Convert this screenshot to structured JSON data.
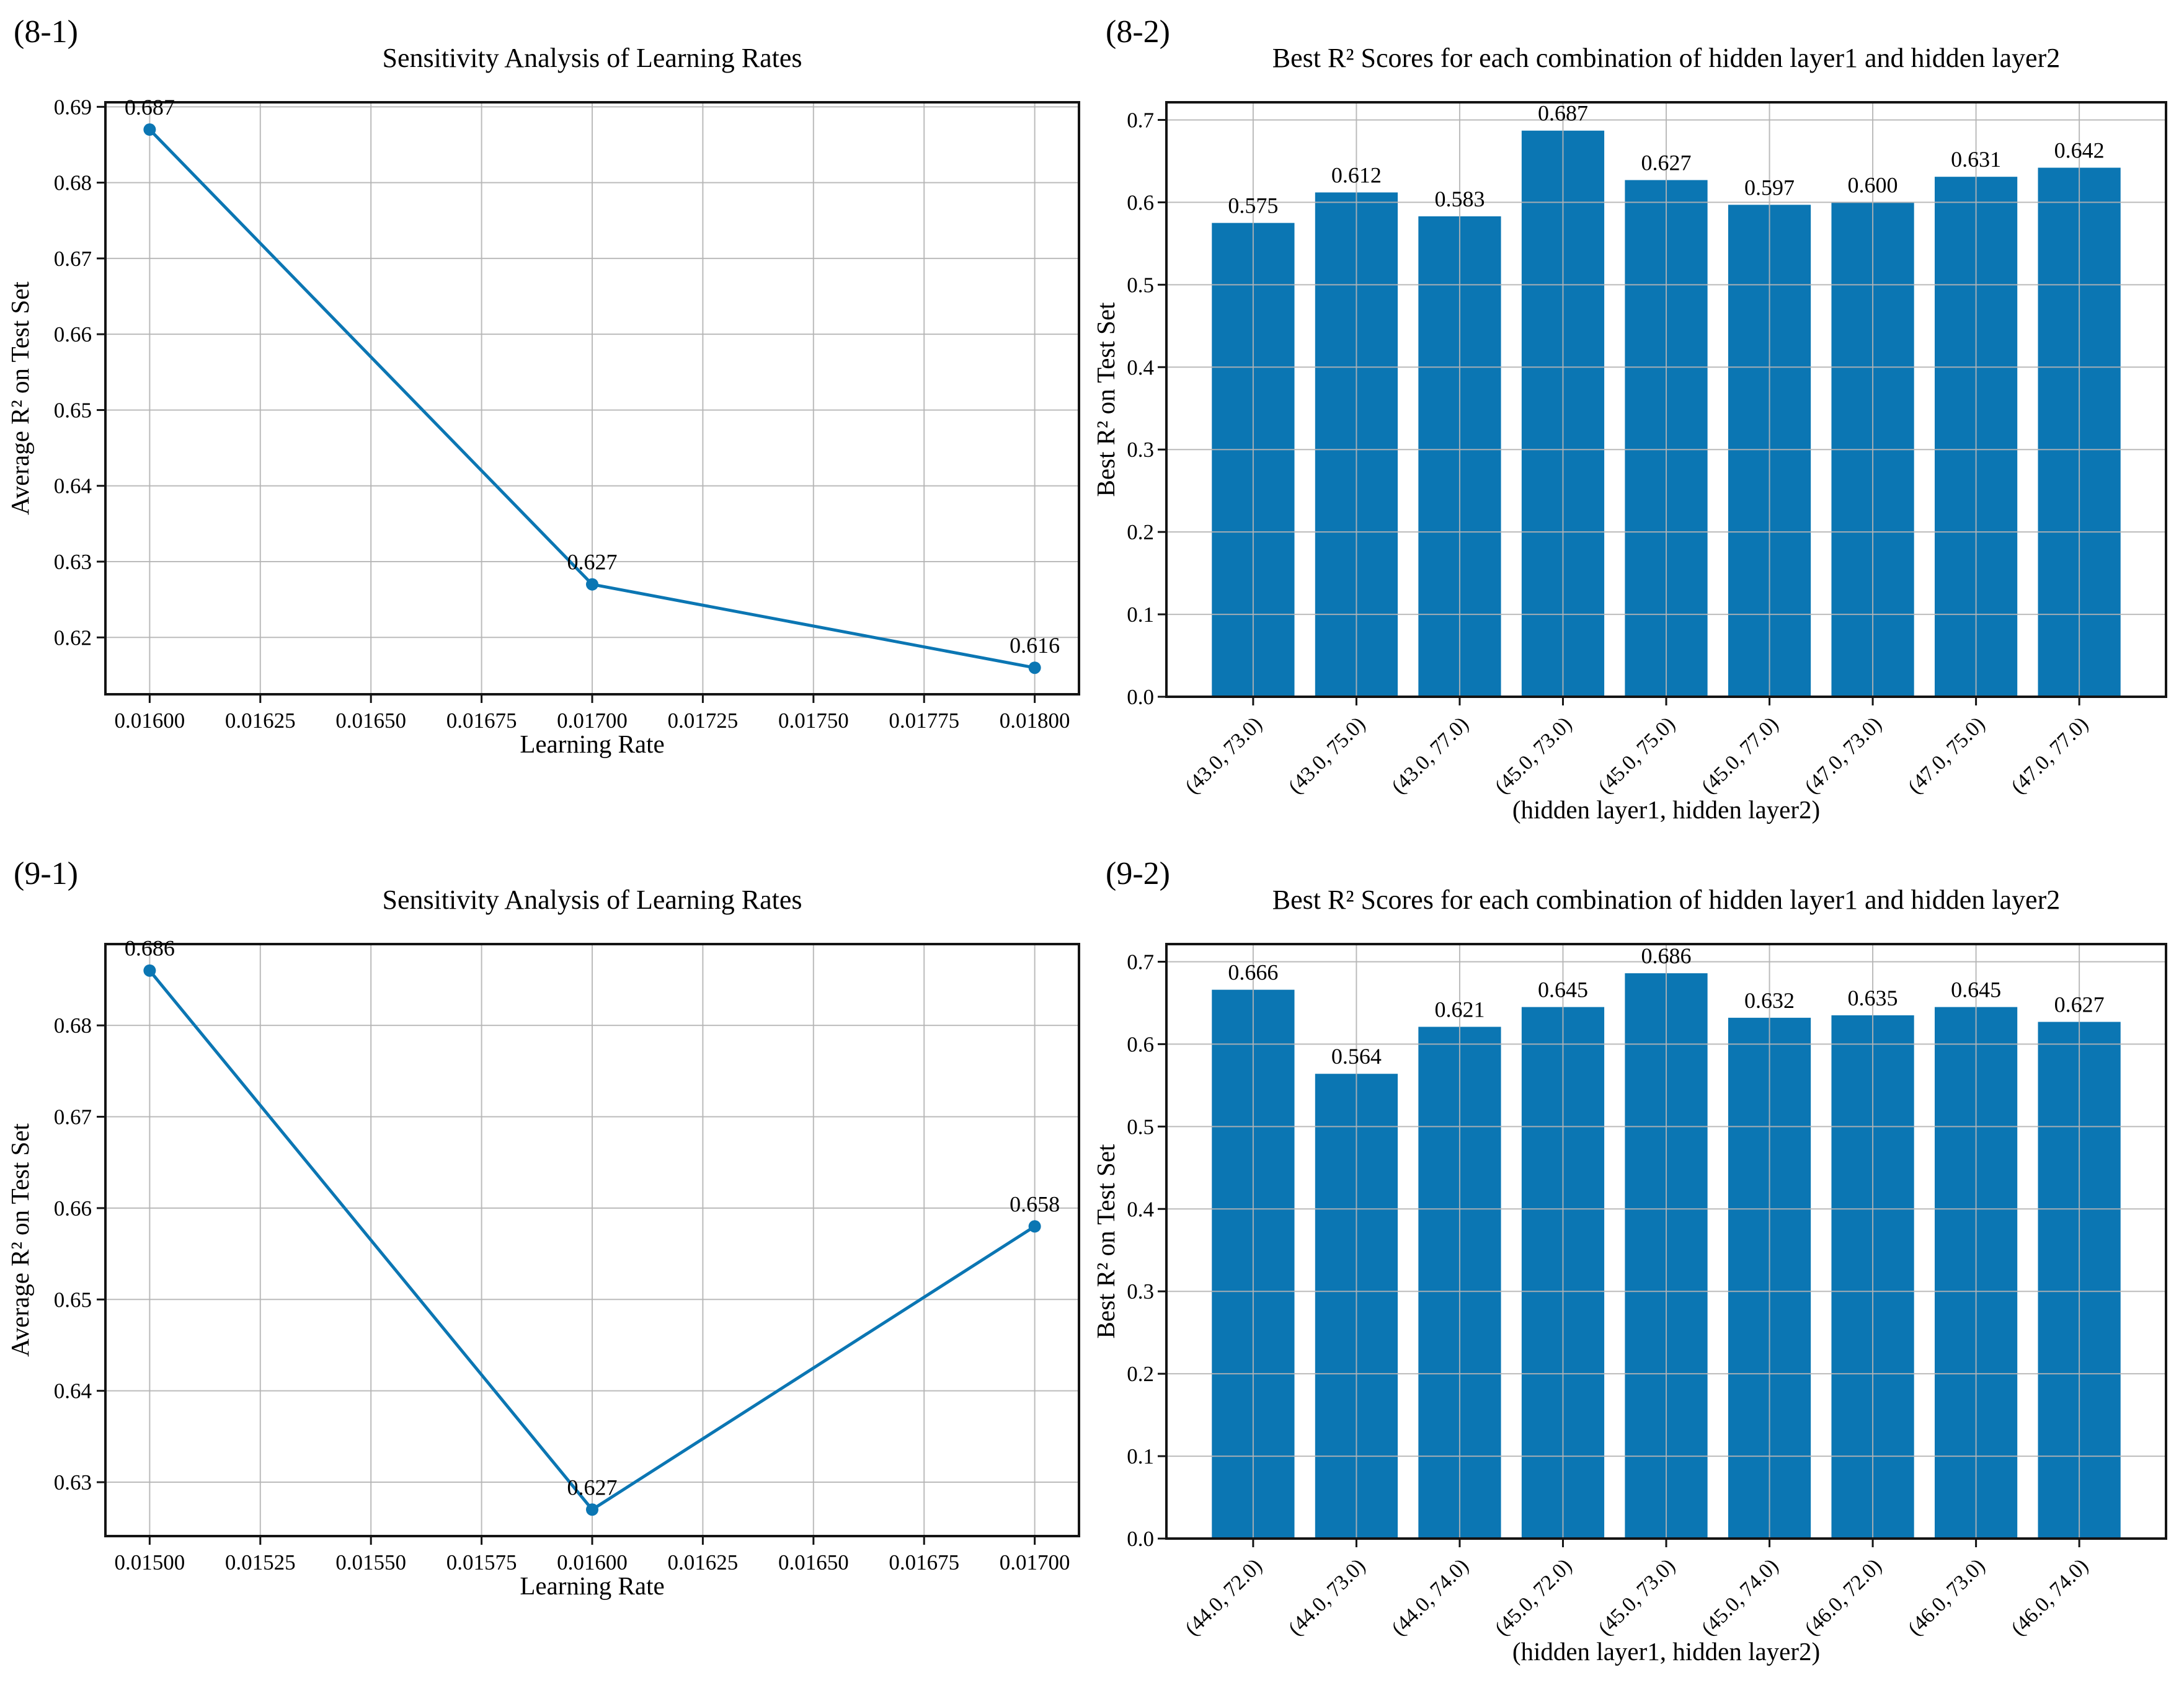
{
  "colors": {
    "series": "#0b76b3",
    "grid": "#b4b4b4",
    "spine": "#141414",
    "text": "#000000",
    "background": "#ffffff"
  },
  "chart_data": [
    {
      "id": "8-1",
      "panel_label": "(8-1)",
      "type": "line",
      "title": "Sensitivity Analysis of Learning Rates",
      "xlabel": "Learning Rate",
      "ylabel": "Average R² on Test Set",
      "x": [
        0.016,
        0.017,
        0.018
      ],
      "y": [
        0.687,
        0.627,
        0.616
      ],
      "point_labels": [
        "0.687",
        "0.627",
        "0.616"
      ],
      "xticks": [
        0.016,
        0.01625,
        0.0165,
        0.01675,
        0.017,
        0.01725,
        0.0175,
        0.01775,
        0.018
      ],
      "xtick_labels": [
        "0.01600",
        "0.01625",
        "0.01650",
        "0.01675",
        "0.01700",
        "0.01725",
        "0.01750",
        "0.01775",
        "0.01800"
      ],
      "yticks": [
        0.62,
        0.63,
        0.64,
        0.65,
        0.66,
        0.67,
        0.68,
        0.69
      ],
      "ytick_labels": [
        "0.62",
        "0.63",
        "0.64",
        "0.65",
        "0.66",
        "0.67",
        "0.68",
        "0.69"
      ],
      "xlim": [
        0.0159,
        0.0181
      ],
      "ylim": [
        0.6125,
        0.6906
      ],
      "grid": true
    },
    {
      "id": "8-2",
      "panel_label": "(8-2)",
      "type": "bar",
      "title": "Best R² Scores for each combination of hidden layer1 and hidden layer2",
      "xlabel": "(hidden layer1, hidden layer2)",
      "ylabel": "Best R² on Test Set",
      "categories": [
        "(43.0, 73.0)",
        "(43.0, 75.0)",
        "(43.0, 77.0)",
        "(45.0, 73.0)",
        "(45.0, 75.0)",
        "(45.0, 77.0)",
        "(47.0, 73.0)",
        "(47.0, 75.0)",
        "(47.0, 77.0)"
      ],
      "values": [
        0.575,
        0.612,
        0.583,
        0.687,
        0.627,
        0.597,
        0.6,
        0.631,
        0.642
      ],
      "value_labels": [
        "0.575",
        "0.612",
        "0.583",
        "0.687",
        "0.627",
        "0.597",
        "0.600",
        "0.631",
        "0.642"
      ],
      "yticks": [
        0.0,
        0.1,
        0.2,
        0.3,
        0.4,
        0.5,
        0.6,
        0.7
      ],
      "ytick_labels": [
        "0.0",
        "0.1",
        "0.2",
        "0.3",
        "0.4",
        "0.5",
        "0.6",
        "0.7"
      ],
      "ylim": [
        0,
        0.7214
      ],
      "grid": true
    },
    {
      "id": "9-1",
      "panel_label": "(9-1)",
      "type": "line",
      "title": "Sensitivity Analysis of Learning Rates",
      "xlabel": "Learning Rate",
      "ylabel": "Average R² on Test Set",
      "x": [
        0.015,
        0.016,
        0.017
      ],
      "y": [
        0.686,
        0.627,
        0.658
      ],
      "point_labels": [
        "0.686",
        "0.627",
        "0.658"
      ],
      "xticks": [
        0.015,
        0.01525,
        0.0155,
        0.01575,
        0.016,
        0.01625,
        0.0165,
        0.01675,
        0.017
      ],
      "xtick_labels": [
        "0.01500",
        "0.01525",
        "0.01550",
        "0.01575",
        "0.01600",
        "0.01625",
        "0.01650",
        "0.01675",
        "0.01700"
      ],
      "yticks": [
        0.63,
        0.64,
        0.65,
        0.66,
        0.67,
        0.68
      ],
      "ytick_labels": [
        "0.63",
        "0.64",
        "0.65",
        "0.66",
        "0.67",
        "0.68"
      ],
      "xlim": [
        0.0149,
        0.0171
      ],
      "ylim": [
        0.6241,
        0.6889
      ],
      "grid": true
    },
    {
      "id": "9-2",
      "panel_label": "(9-2)",
      "type": "bar",
      "title": "Best R² Scores for each combination of hidden layer1 and hidden layer2",
      "xlabel": "(hidden layer1, hidden layer2)",
      "ylabel": "Best R² on Test Set",
      "categories": [
        "(44.0, 72.0)",
        "(44.0, 73.0)",
        "(44.0, 74.0)",
        "(45.0, 72.0)",
        "(45.0, 73.0)",
        "(45.0, 74.0)",
        "(46.0, 72.0)",
        "(46.0, 73.0)",
        "(46.0, 74.0)"
      ],
      "values": [
        0.666,
        0.564,
        0.621,
        0.645,
        0.686,
        0.632,
        0.635,
        0.645,
        0.627
      ],
      "value_labels": [
        "0.666",
        "0.564",
        "0.621",
        "0.645",
        "0.686",
        "0.632",
        "0.635",
        "0.645",
        "0.627"
      ],
      "yticks": [
        0.0,
        0.1,
        0.2,
        0.3,
        0.4,
        0.5,
        0.6,
        0.7
      ],
      "ytick_labels": [
        "0.0",
        "0.1",
        "0.2",
        "0.3",
        "0.4",
        "0.5",
        "0.6",
        "0.7"
      ],
      "ylim": [
        0,
        0.7214
      ],
      "grid": true
    }
  ]
}
